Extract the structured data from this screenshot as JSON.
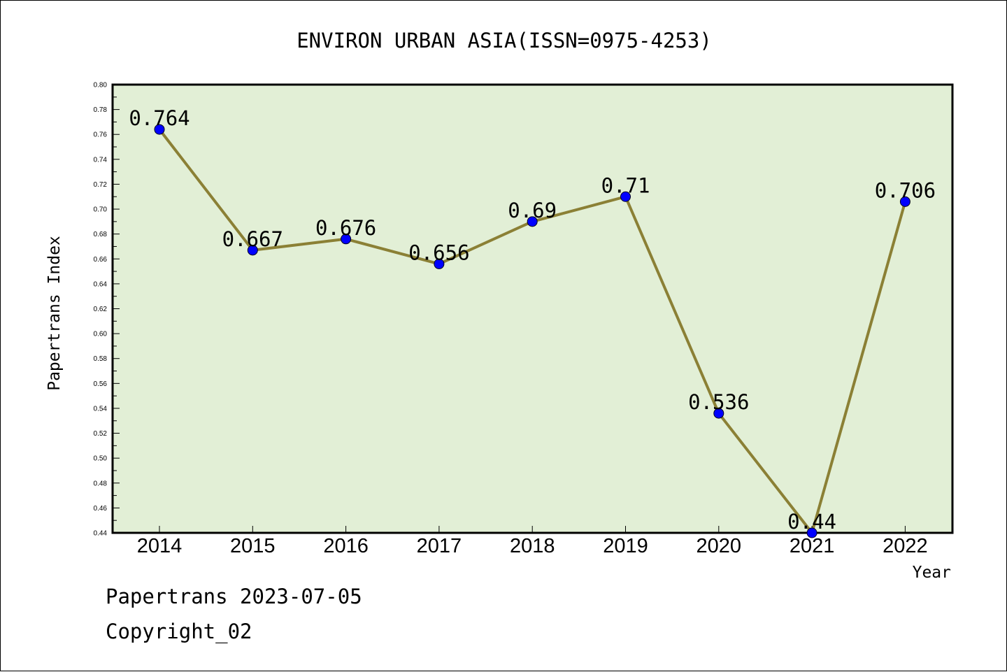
{
  "chart_data": {
    "type": "line",
    "title": "ENVIRON URBAN ASIA(ISSN=0975-4253)",
    "xlabel": "Year",
    "ylabel": "Papertrans Index",
    "x": [
      "2014",
      "2015",
      "2016",
      "2017",
      "2018",
      "2019",
      "2020",
      "2021",
      "2022"
    ],
    "series": [
      {
        "values": [
          0.764,
          0.667,
          0.676,
          0.656,
          0.69,
          0.71,
          0.536,
          0.44,
          0.706
        ],
        "labels": [
          "0.764",
          "0.667",
          "0.676",
          "0.656",
          "0.69",
          "0.71",
          "0.536",
          "0.44",
          "0.706"
        ]
      }
    ],
    "ylim": [
      0.44,
      0.8
    ],
    "yticks": [
      "0.44",
      "0.46",
      "0.48",
      "0.50",
      "0.52",
      "0.54",
      "0.56",
      "0.58",
      "0.60",
      "0.62",
      "0.64",
      "0.66",
      "0.68",
      "0.70",
      "0.72",
      "0.74",
      "0.76",
      "0.78",
      "0.80"
    ],
    "grid": false,
    "colors": {
      "plot_background": "#e2efd6",
      "line": "#8b8035",
      "marker": "#0000ff"
    }
  },
  "footer": {
    "line1": "Papertrans 2023-07-05",
    "line2": "Copyright_02"
  }
}
